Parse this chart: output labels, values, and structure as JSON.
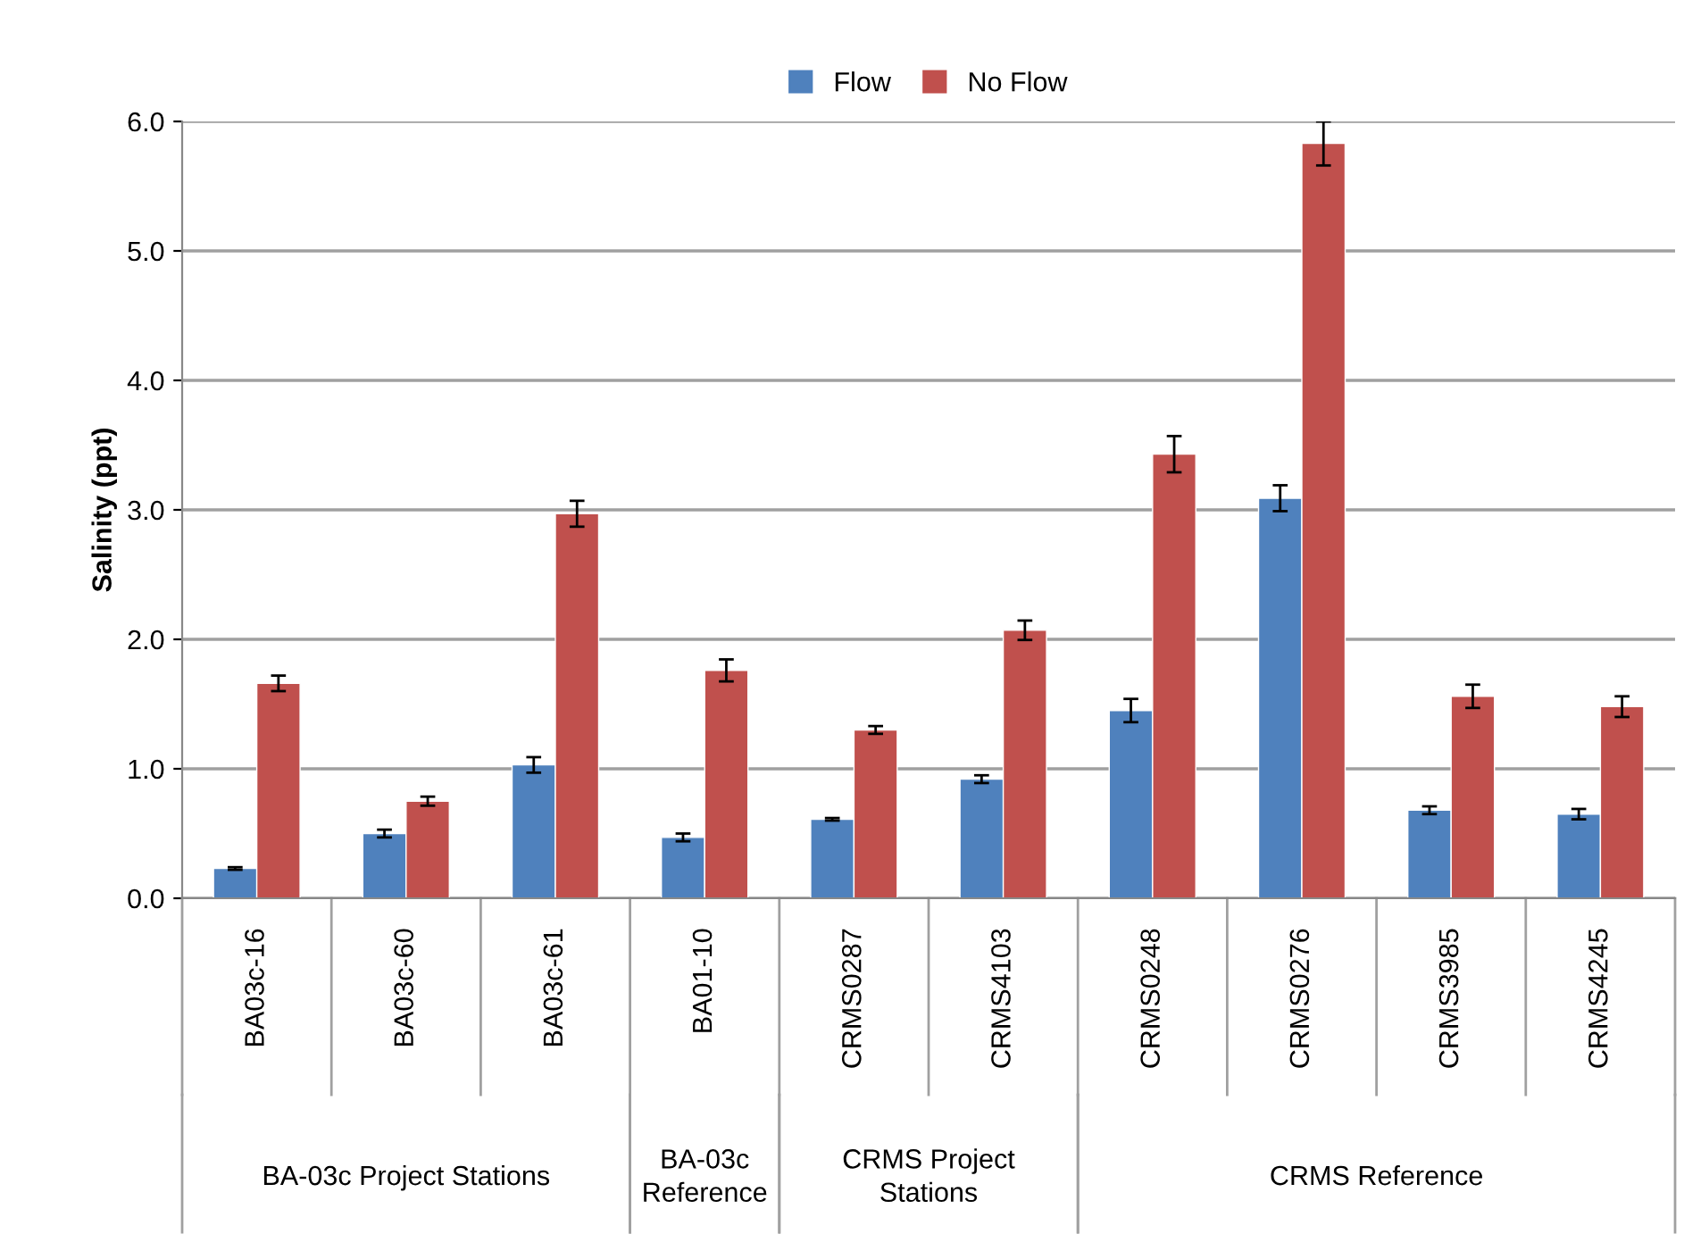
{
  "chart_data": {
    "type": "bar",
    "ylabel": "Salinity (ppt)",
    "categories": [
      "BA03c-16",
      "BA03c-60",
      "BA03c-61",
      "BA01-10",
      "CRMS0287",
      "CRMS4103",
      "CRMS0248",
      "CRMS0276",
      "CRMS3985",
      "CRMS4245"
    ],
    "series": [
      {
        "name": "Flow",
        "color": "#4f81bd",
        "values": [
          0.23,
          0.5,
          1.03,
          0.47,
          0.61,
          0.92,
          1.45,
          3.09,
          0.68,
          0.65
        ],
        "errors": [
          0.01,
          0.03,
          0.06,
          0.03,
          0.01,
          0.03,
          0.09,
          0.1,
          0.03,
          0.04
        ]
      },
      {
        "name": "No Flow",
        "color": "#c0504d",
        "values": [
          1.66,
          0.75,
          2.97,
          1.76,
          1.3,
          2.07,
          3.43,
          5.83,
          1.56,
          1.48
        ],
        "errors": [
          0.06,
          0.035,
          0.1,
          0.085,
          0.03,
          0.075,
          0.14,
          0.17,
          0.09,
          0.08
        ]
      }
    ],
    "annotations": [
      "BA-03c Project Stations",
      "BA-03c\nReference",
      "CRMS Project\nStations",
      "CRMS Reference"
    ],
    "ylim": [
      0,
      6
    ],
    "yticks": [
      {
        "value": 0,
        "label": "0.0"
      },
      {
        "value": 1,
        "label": "1.0"
      },
      {
        "value": 2,
        "label": "2.0"
      },
      {
        "value": 3,
        "label": "3.0"
      },
      {
        "value": 4,
        "label": "4.0"
      },
      {
        "value": 5,
        "label": "5.0"
      },
      {
        "value": 6,
        "label": "6.0"
      }
    ],
    "grid": "y",
    "legend": "top"
  }
}
